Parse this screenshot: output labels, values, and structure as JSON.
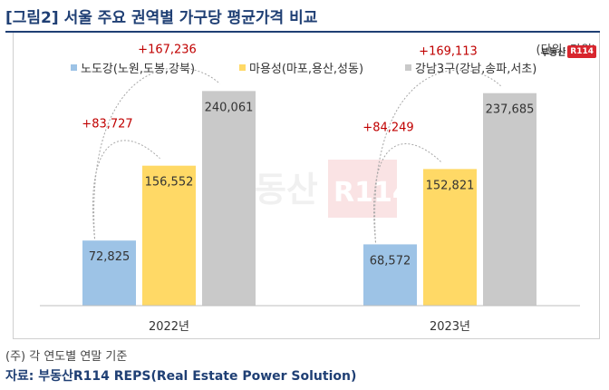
{
  "header": {
    "title": "[그림2] 서울 주요 권역별 가구당 평균가격 비교",
    "unit": "(단위: 만원)",
    "logo_text": "부동산",
    "logo_badge": "R114"
  },
  "watermark": {
    "text": "부동산",
    "badge": "R114"
  },
  "chart_data": {
    "type": "bar",
    "title": "",
    "xlabel": "",
    "ylabel": "",
    "categories": [
      "2022년",
      "2023년"
    ],
    "series": [
      {
        "name": "노도강(노원,도봉,강북)",
        "values": [
          72825,
          68572
        ],
        "color": "#9dc3e6"
      },
      {
        "name": "마용성(마포,용산,성동)",
        "values": [
          156552,
          152821
        ],
        "color": "#ffd966"
      },
      {
        "name": "강남3구(강남,송파,서초)",
        "values": [
          240061,
          237685
        ],
        "color": "#c9c9c9"
      }
    ],
    "ylim": [
      0,
      280000
    ],
    "grid": false,
    "legend": "top",
    "annotations": [
      {
        "category": "2022년",
        "from_series": 0,
        "to_series": 1,
        "text": "+83,727"
      },
      {
        "category": "2022년",
        "from_series": 0,
        "to_series": 2,
        "text": "+167,236"
      },
      {
        "category": "2023년",
        "from_series": 0,
        "to_series": 1,
        "text": "+84,249"
      },
      {
        "category": "2023년",
        "from_series": 0,
        "to_series": 2,
        "text": "+169,113"
      }
    ],
    "annotation_color": "#c00000"
  },
  "footer": {
    "note": "(주) 각 연도별 연말 기준",
    "source": "자료: 부동산R114 REPS(Real Estate Power Solution)"
  }
}
